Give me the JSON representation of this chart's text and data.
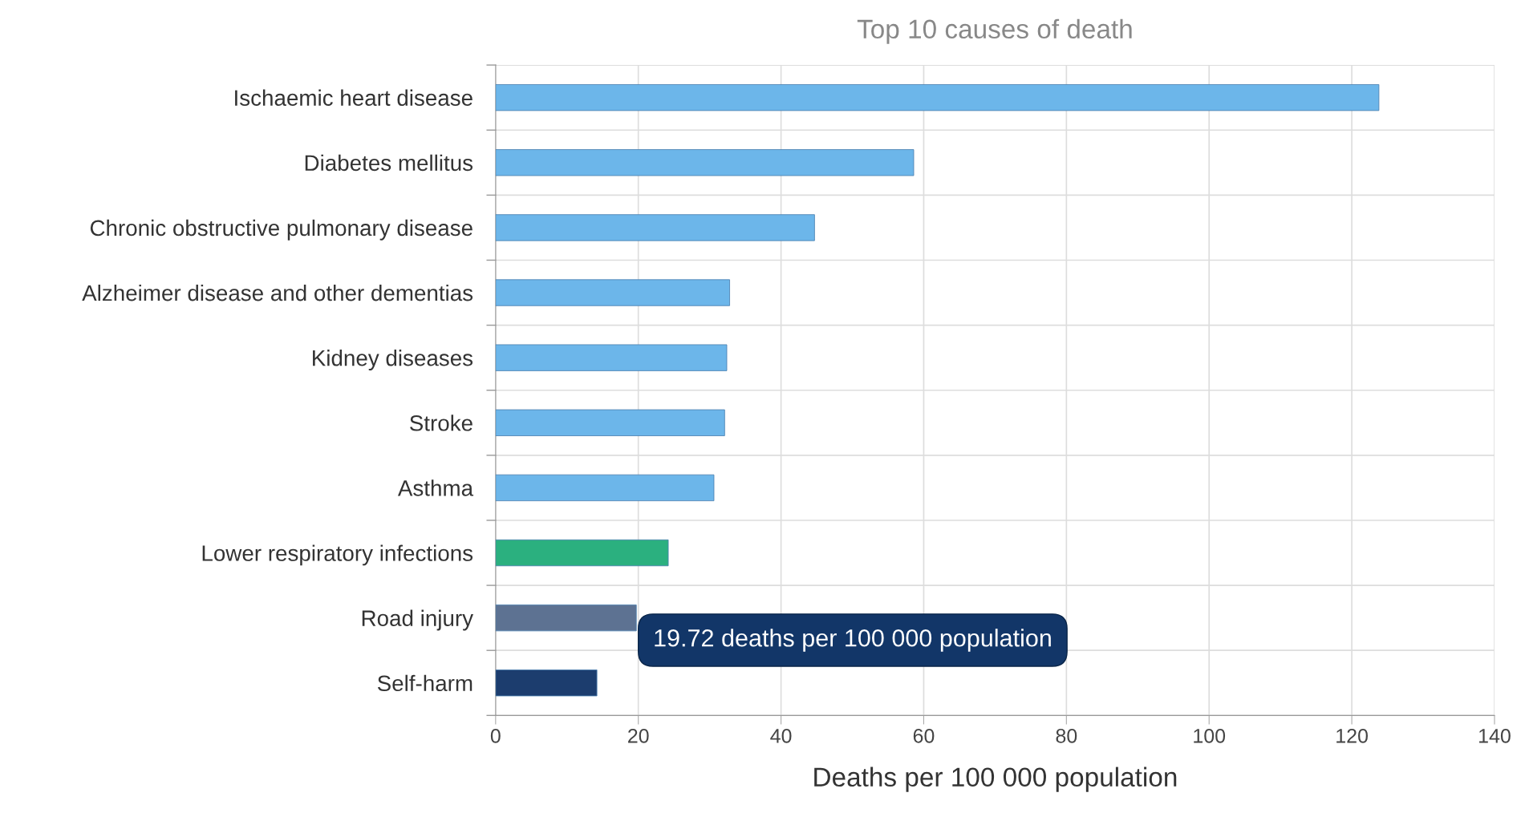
{
  "chart_data": {
    "type": "bar",
    "orientation": "horizontal",
    "title": "Top 10 causes of death",
    "xlabel": "Deaths per 100 000 population",
    "categories": [
      "Ischaemic heart disease",
      "Diabetes mellitus",
      "Chronic obstructive pulmonary disease",
      "Alzheimer disease and other dementias",
      "Kidney diseases",
      "Stroke",
      "Asthma",
      "Lower respiratory infections",
      "Road injury",
      "Self-harm"
    ],
    "values": [
      123.8,
      58.6,
      44.7,
      32.8,
      32.4,
      32.1,
      30.6,
      24.2,
      19.72,
      14.2
    ],
    "colors": [
      "#6cb6ea",
      "#6cb6ea",
      "#6cb6ea",
      "#6cb6ea",
      "#6cb6ea",
      "#6cb6ea",
      "#6cb6ea",
      "#2bb07f",
      "#5d7292",
      "#1c3d6e"
    ],
    "xlim": [
      0,
      140
    ],
    "xticks": [
      0,
      20,
      40,
      60,
      80,
      100,
      120,
      140
    ],
    "grid": true,
    "legend": false,
    "annotations": [
      {
        "text": "19.72 deaths per 100 000 population",
        "x": 19.72,
        "y": "Road injury"
      }
    ]
  }
}
